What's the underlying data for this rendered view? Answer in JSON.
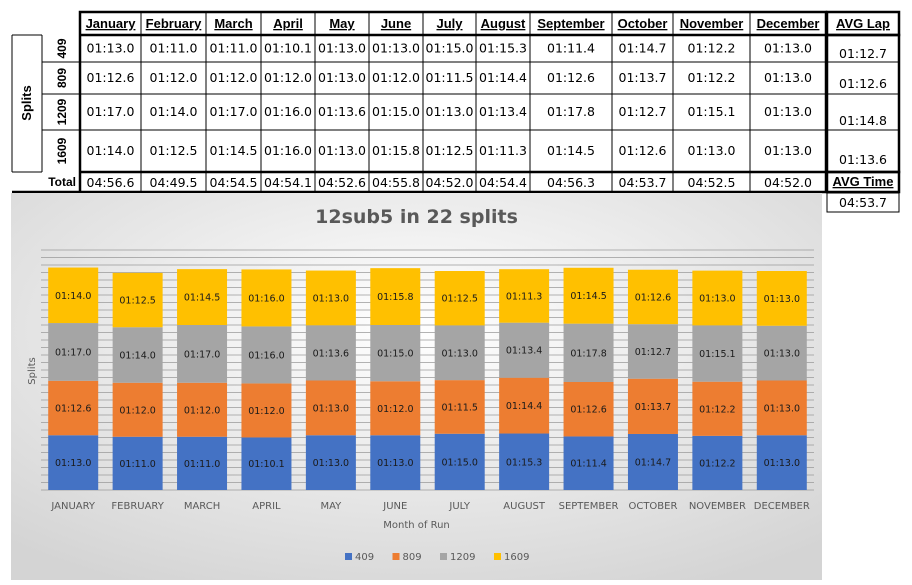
{
  "table": {
    "months": [
      "January",
      "February",
      "March",
      "April",
      "May",
      "June",
      "July",
      "August",
      "September",
      "October",
      "November",
      "December"
    ],
    "avg_lap_header": "AVG Lap",
    "avg_time_header": "AVG Time",
    "splits_label": "Splits",
    "total_label": "Total",
    "rows": [
      {
        "split": "409",
        "values": [
          "01:13.0",
          "01:11.0",
          "01:11.0",
          "01:10.1",
          "01:13.0",
          "01:13.0",
          "01:15.0",
          "01:15.3",
          "01:11.4",
          "01:14.7",
          "01:12.2",
          "01:13.0"
        ],
        "avg": "01:12.7"
      },
      {
        "split": "809",
        "values": [
          "01:12.6",
          "01:12.0",
          "01:12.0",
          "01:12.0",
          "01:13.0",
          "01:12.0",
          "01:11.5",
          "01:14.4",
          "01:12.6",
          "01:13.7",
          "01:12.2",
          "01:13.0"
        ],
        "avg": "01:12.6"
      },
      {
        "split": "1209",
        "values": [
          "01:17.0",
          "01:14.0",
          "01:17.0",
          "01:16.0",
          "01:13.6",
          "01:15.0",
          "01:13.0",
          "01:13.4",
          "01:17.8",
          "01:12.7",
          "01:15.1",
          "01:13.0"
        ],
        "avg": "01:14.8"
      },
      {
        "split": "1609",
        "values": [
          "01:14.0",
          "01:12.5",
          "01:14.5",
          "01:16.0",
          "01:13.0",
          "01:15.8",
          "01:12.5",
          "01:11.3",
          "01:14.5",
          "01:12.6",
          "01:13.0",
          "01:13.0"
        ],
        "avg": "01:13.6"
      }
    ],
    "totals": [
      "04:56.6",
      "04:49.5",
      "04:54.5",
      "04:54.1",
      "04:52.6",
      "04:55.8",
      "04:52.0",
      "04:54.4",
      "04:56.3",
      "04:53.7",
      "04:52.5",
      "04:52.0"
    ],
    "avg_time": "04:53.7"
  },
  "chart_data": {
    "type": "bar",
    "stacked": true,
    "title": "12sub5 in 22 splits",
    "xlabel": "Month of Run",
    "ylabel": "Splits",
    "ylim": [
      0,
      320
    ],
    "categories": [
      "JANUARY",
      "FEBRUARY",
      "MARCH",
      "APRIL",
      "MAY",
      "JUNE",
      "JULY",
      "AUGUST",
      "SEPTEMBER",
      "OCTOBER",
      "NOVEMBER",
      "DECEMBER"
    ],
    "series": [
      {
        "name": "409",
        "color": "#4472C4",
        "values": [
          73.0,
          71.0,
          71.0,
          70.1,
          73.0,
          73.0,
          75.0,
          75.3,
          71.4,
          74.7,
          72.2,
          73.0
        ],
        "labels": [
          "01:13.0",
          "01:11.0",
          "01:11.0",
          "01:10.1",
          "01:13.0",
          "01:13.0",
          "01:15.0",
          "01:15.3",
          "01:11.4",
          "01:14.7",
          "01:12.2",
          "01:13.0"
        ]
      },
      {
        "name": "809",
        "color": "#ED7D31",
        "values": [
          72.6,
          72.0,
          72.0,
          72.0,
          73.0,
          72.0,
          71.5,
          74.4,
          72.6,
          73.7,
          72.2,
          73.0
        ],
        "labels": [
          "01:12.6",
          "01:12.0",
          "01:12.0",
          "01:12.0",
          "01:13.0",
          "01:12.0",
          "01:11.5",
          "01:14.4",
          "01:12.6",
          "01:13.7",
          "01:12.2",
          "01:13.0"
        ]
      },
      {
        "name": "1209",
        "color": "#A5A5A5",
        "values": [
          77.0,
          74.0,
          77.0,
          76.0,
          73.6,
          75.0,
          73.0,
          73.4,
          77.8,
          72.7,
          75.1,
          73.0
        ],
        "labels": [
          "01:17.0",
          "01:14.0",
          "01:17.0",
          "01:16.0",
          "01:13.6",
          "01:15.0",
          "01:13.0",
          "01:13.4",
          "01:17.8",
          "01:12.7",
          "01:15.1",
          "01:13.0"
        ]
      },
      {
        "name": "1609",
        "color": "#FFC000",
        "values": [
          74.0,
          72.5,
          74.5,
          76.0,
          73.0,
          75.8,
          72.5,
          71.3,
          74.5,
          72.6,
          73.0,
          73.0
        ],
        "labels": [
          "01:14.0",
          "01:12.5",
          "01:14.5",
          "01:16.0",
          "01:13.0",
          "01:15.8",
          "01:12.5",
          "01:11.3",
          "01:14.5",
          "01:12.6",
          "01:13.0",
          "01:13.0"
        ]
      }
    ],
    "legend": "bottom"
  }
}
